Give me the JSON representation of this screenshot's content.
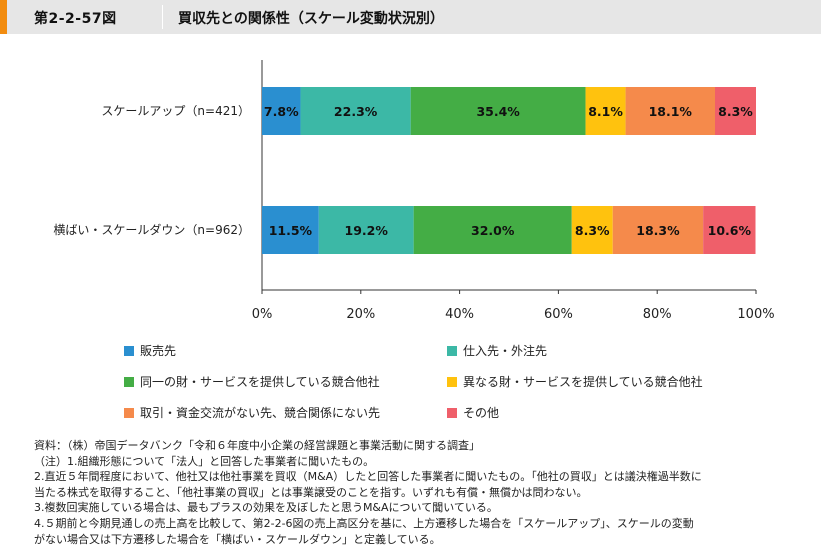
{
  "header": {
    "figure_number": "第2-2-57図",
    "title": "買収先との関係性（スケール変動状況別）"
  },
  "colors": {
    "header_bg": "#e6e6e6",
    "header_accent": "#f28c0f"
  },
  "chart_data": {
    "type": "bar",
    "orientation": "horizontal",
    "stacked": true,
    "percent_stacked": true,
    "categories": [
      "スケールアップ（n=421）",
      "横ばい・スケールダウン（n=962）"
    ],
    "series": [
      {
        "name": "販売先",
        "color": "#2a8fd0",
        "values": [
          7.8,
          11.5
        ],
        "labels": [
          "7.8%",
          "11.5%"
        ]
      },
      {
        "name": "仕入先・外注先",
        "color": "#3cb8a6",
        "values": [
          22.3,
          19.2
        ],
        "labels": [
          "22.3%",
          "19.2%"
        ]
      },
      {
        "name": "同一の財・サービスを提供している競合他社",
        "color": "#44ad45",
        "values": [
          35.4,
          32.0
        ],
        "labels": [
          "35.4%",
          "32.0%"
        ]
      },
      {
        "name": "異なる財・サービスを提供している競合他社",
        "color": "#ffc20e",
        "values": [
          8.1,
          8.3
        ],
        "labels": [
          "8.1%",
          "8.3%"
        ]
      },
      {
        "name": "取引・資金交流がない先、競合関係にない先",
        "color": "#f58a4b",
        "values": [
          18.1,
          18.3
        ],
        "labels": [
          "18.1%",
          "18.3%"
        ]
      },
      {
        "name": "その他",
        "color": "#ef5f6a",
        "values": [
          8.3,
          10.6
        ],
        "labels": [
          "8.3%",
          "10.6%"
        ]
      }
    ],
    "xlim": [
      0,
      100
    ],
    "x_ticks": [
      0,
      20,
      40,
      60,
      80,
      100
    ],
    "x_tick_labels": [
      "0%",
      "20%",
      "40%",
      "60%",
      "80%",
      "100%"
    ],
    "grid": false,
    "legend_position": "bottom"
  },
  "notes": [
    "資料：（株）帝国データバンク「令和６年度中小企業の経営課題と事業活動に関する調査」",
    "（注）1.組織形態について「法人」と回答した事業者に聞いたもの。",
    "2.直近５年間程度において、他社又は他社事業を買収（M&A）したと回答した事業者に聞いたもの。「他社の買収」とは議決権過半数に",
    "当たる株式を取得すること、「他社事業の買収」とは事業譲受のことを指す。いずれも有償・無償かは問わない。",
    "3.複数回実施している場合は、最もプラスの効果を及ぼしたと思うM&Aについて聞いている。",
    "4.５期前と今期見通しの売上高を比較して、第2-2-6図の売上高区分を基に、上方遷移した場合を「スケールアップ」、スケールの変動",
    "がない場合又は下方遷移した場合を「横ばい・スケールダウン」と定義している。"
  ]
}
